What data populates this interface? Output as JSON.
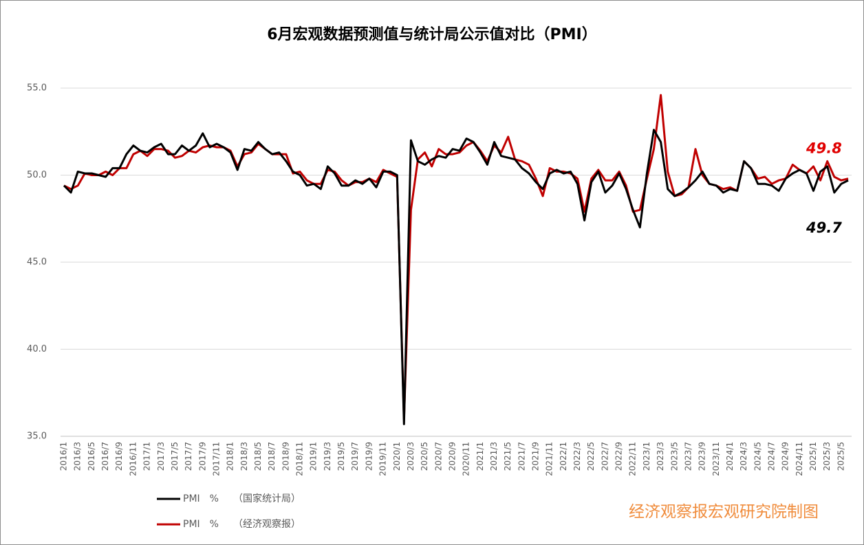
{
  "chart_data": {
    "type": "line",
    "title": "6月宏观数据预测值与统计局公示值对比（PMI）",
    "watermark": "经济观察报宏观研究院制图",
    "categories": [
      "2016/1",
      null,
      "2016/3",
      null,
      "2016/5",
      null,
      "2016/7",
      null,
      "2016/9",
      null,
      "2016/11",
      null,
      "2017/1",
      null,
      "2017/3",
      null,
      "2017/5",
      null,
      "2017/7",
      null,
      "2017/9",
      null,
      "2017/11",
      null,
      "2018/1",
      null,
      "2018/3",
      null,
      "2018/5",
      null,
      "2018/7",
      null,
      "2018/9",
      null,
      "2018/11",
      null,
      "2019/1",
      null,
      "2019/3",
      null,
      "2019/5",
      null,
      "2019/7",
      null,
      "2019/9",
      null,
      "2019/11",
      null,
      "2020/1",
      null,
      "2020/3",
      null,
      "2020/5",
      null,
      "2020/7",
      null,
      "2020/9",
      null,
      "2020/11",
      null,
      "2021/1",
      null,
      "2021/3",
      null,
      "2021/5",
      null,
      "2021/7",
      null,
      "2021/9",
      null,
      "2021/11",
      null,
      "2022/1",
      null,
      "2022/3",
      null,
      "2022/5",
      null,
      "2022/7",
      null,
      "2022/9",
      null,
      "2022/11",
      null,
      "2023/1",
      null,
      "2023/3",
      null,
      "2023/5",
      null,
      "2023/7",
      null,
      "2023/9",
      null,
      "2023/11",
      null,
      "2024/1",
      null,
      "2024/3",
      null,
      "2024/5",
      null,
      "2024/7",
      null,
      "2024/9",
      null,
      "2024/11",
      null,
      "2025/1",
      null,
      "2025/3",
      null,
      "2025/5",
      null
    ],
    "series": [
      {
        "name": "PMI　%　　（国家统计局）",
        "color": "#000000",
        "end_label": "49.7",
        "values": [
          49.4,
          49.0,
          50.2,
          50.1,
          50.1,
          50.0,
          49.9,
          50.4,
          50.4,
          51.2,
          51.7,
          51.4,
          51.3,
          51.6,
          51.8,
          51.2,
          51.2,
          51.7,
          51.4,
          51.7,
          52.4,
          51.6,
          51.8,
          51.6,
          51.3,
          50.3,
          51.5,
          51.4,
          51.9,
          51.5,
          51.2,
          51.3,
          50.8,
          50.2,
          50.0,
          49.4,
          49.5,
          49.2,
          50.5,
          50.1,
          49.4,
          49.4,
          49.7,
          49.5,
          49.8,
          49.3,
          50.2,
          50.2,
          50.0,
          35.7,
          52.0,
          50.8,
          50.6,
          50.9,
          51.1,
          51.0,
          51.5,
          51.4,
          52.1,
          51.9,
          51.3,
          50.6,
          51.9,
          51.1,
          51.0,
          50.9,
          50.4,
          50.1,
          49.6,
          49.2,
          50.1,
          50.3,
          50.1,
          50.2,
          49.5,
          47.4,
          49.6,
          50.2,
          49.0,
          49.4,
          50.1,
          49.2,
          48.0,
          47.0,
          50.1,
          52.6,
          51.9,
          49.2,
          48.8,
          49.0,
          49.3,
          49.7,
          50.2,
          49.5,
          49.4,
          49.0,
          49.2,
          49.1,
          50.8,
          50.4,
          49.5,
          49.5,
          49.4,
          49.1,
          49.8,
          50.1,
          50.3,
          50.1,
          49.1,
          50.2,
          50.5,
          49.0,
          49.5,
          49.7
        ]
      },
      {
        "name": "PMI　%　　（经济观察报）",
        "color": "#c00000",
        "end_label": "49.8",
        "values": [
          49.4,
          49.2,
          49.4,
          50.1,
          50.0,
          50.0,
          50.2,
          50.0,
          50.4,
          50.4,
          51.2,
          51.4,
          51.1,
          51.5,
          51.5,
          51.4,
          51.0,
          51.1,
          51.4,
          51.3,
          51.6,
          51.7,
          51.6,
          51.6,
          51.4,
          50.5,
          51.2,
          51.3,
          51.8,
          51.5,
          51.2,
          51.2,
          51.2,
          50.1,
          50.2,
          49.7,
          49.5,
          49.5,
          50.3,
          50.2,
          49.7,
          49.4,
          49.6,
          49.6,
          49.8,
          49.6,
          50.3,
          50.1,
          49.9,
          36.0,
          48.0,
          50.9,
          51.3,
          50.5,
          51.5,
          51.2,
          51.2,
          51.3,
          51.7,
          51.9,
          51.4,
          50.8,
          51.7,
          51.3,
          52.2,
          50.9,
          50.8,
          50.6,
          49.8,
          48.8,
          50.4,
          50.2,
          50.2,
          50.1,
          49.8,
          47.9,
          49.8,
          50.3,
          49.7,
          49.7,
          50.2,
          49.4,
          47.9,
          48.0,
          49.8,
          51.5,
          54.6,
          50.2,
          48.8,
          48.9,
          49.3,
          51.5,
          50.0,
          49.5,
          49.4,
          49.2,
          49.3,
          49.1,
          50.8,
          50.4,
          49.8,
          49.9,
          49.5,
          49.7,
          49.8,
          50.6,
          50.3,
          50.1,
          50.5,
          49.7,
          50.8,
          49.9,
          49.7,
          49.8
        ]
      }
    ],
    "ylim": [
      35,
      55
    ],
    "yticks": [
      {
        "value": 35,
        "label": "35.0"
      },
      {
        "value": 40,
        "label": "40.0"
      },
      {
        "value": 45,
        "label": "45.0"
      },
      {
        "value": 50,
        "label": "50.0"
      },
      {
        "value": 55,
        "label": "55.0"
      }
    ],
    "grid": true
  }
}
